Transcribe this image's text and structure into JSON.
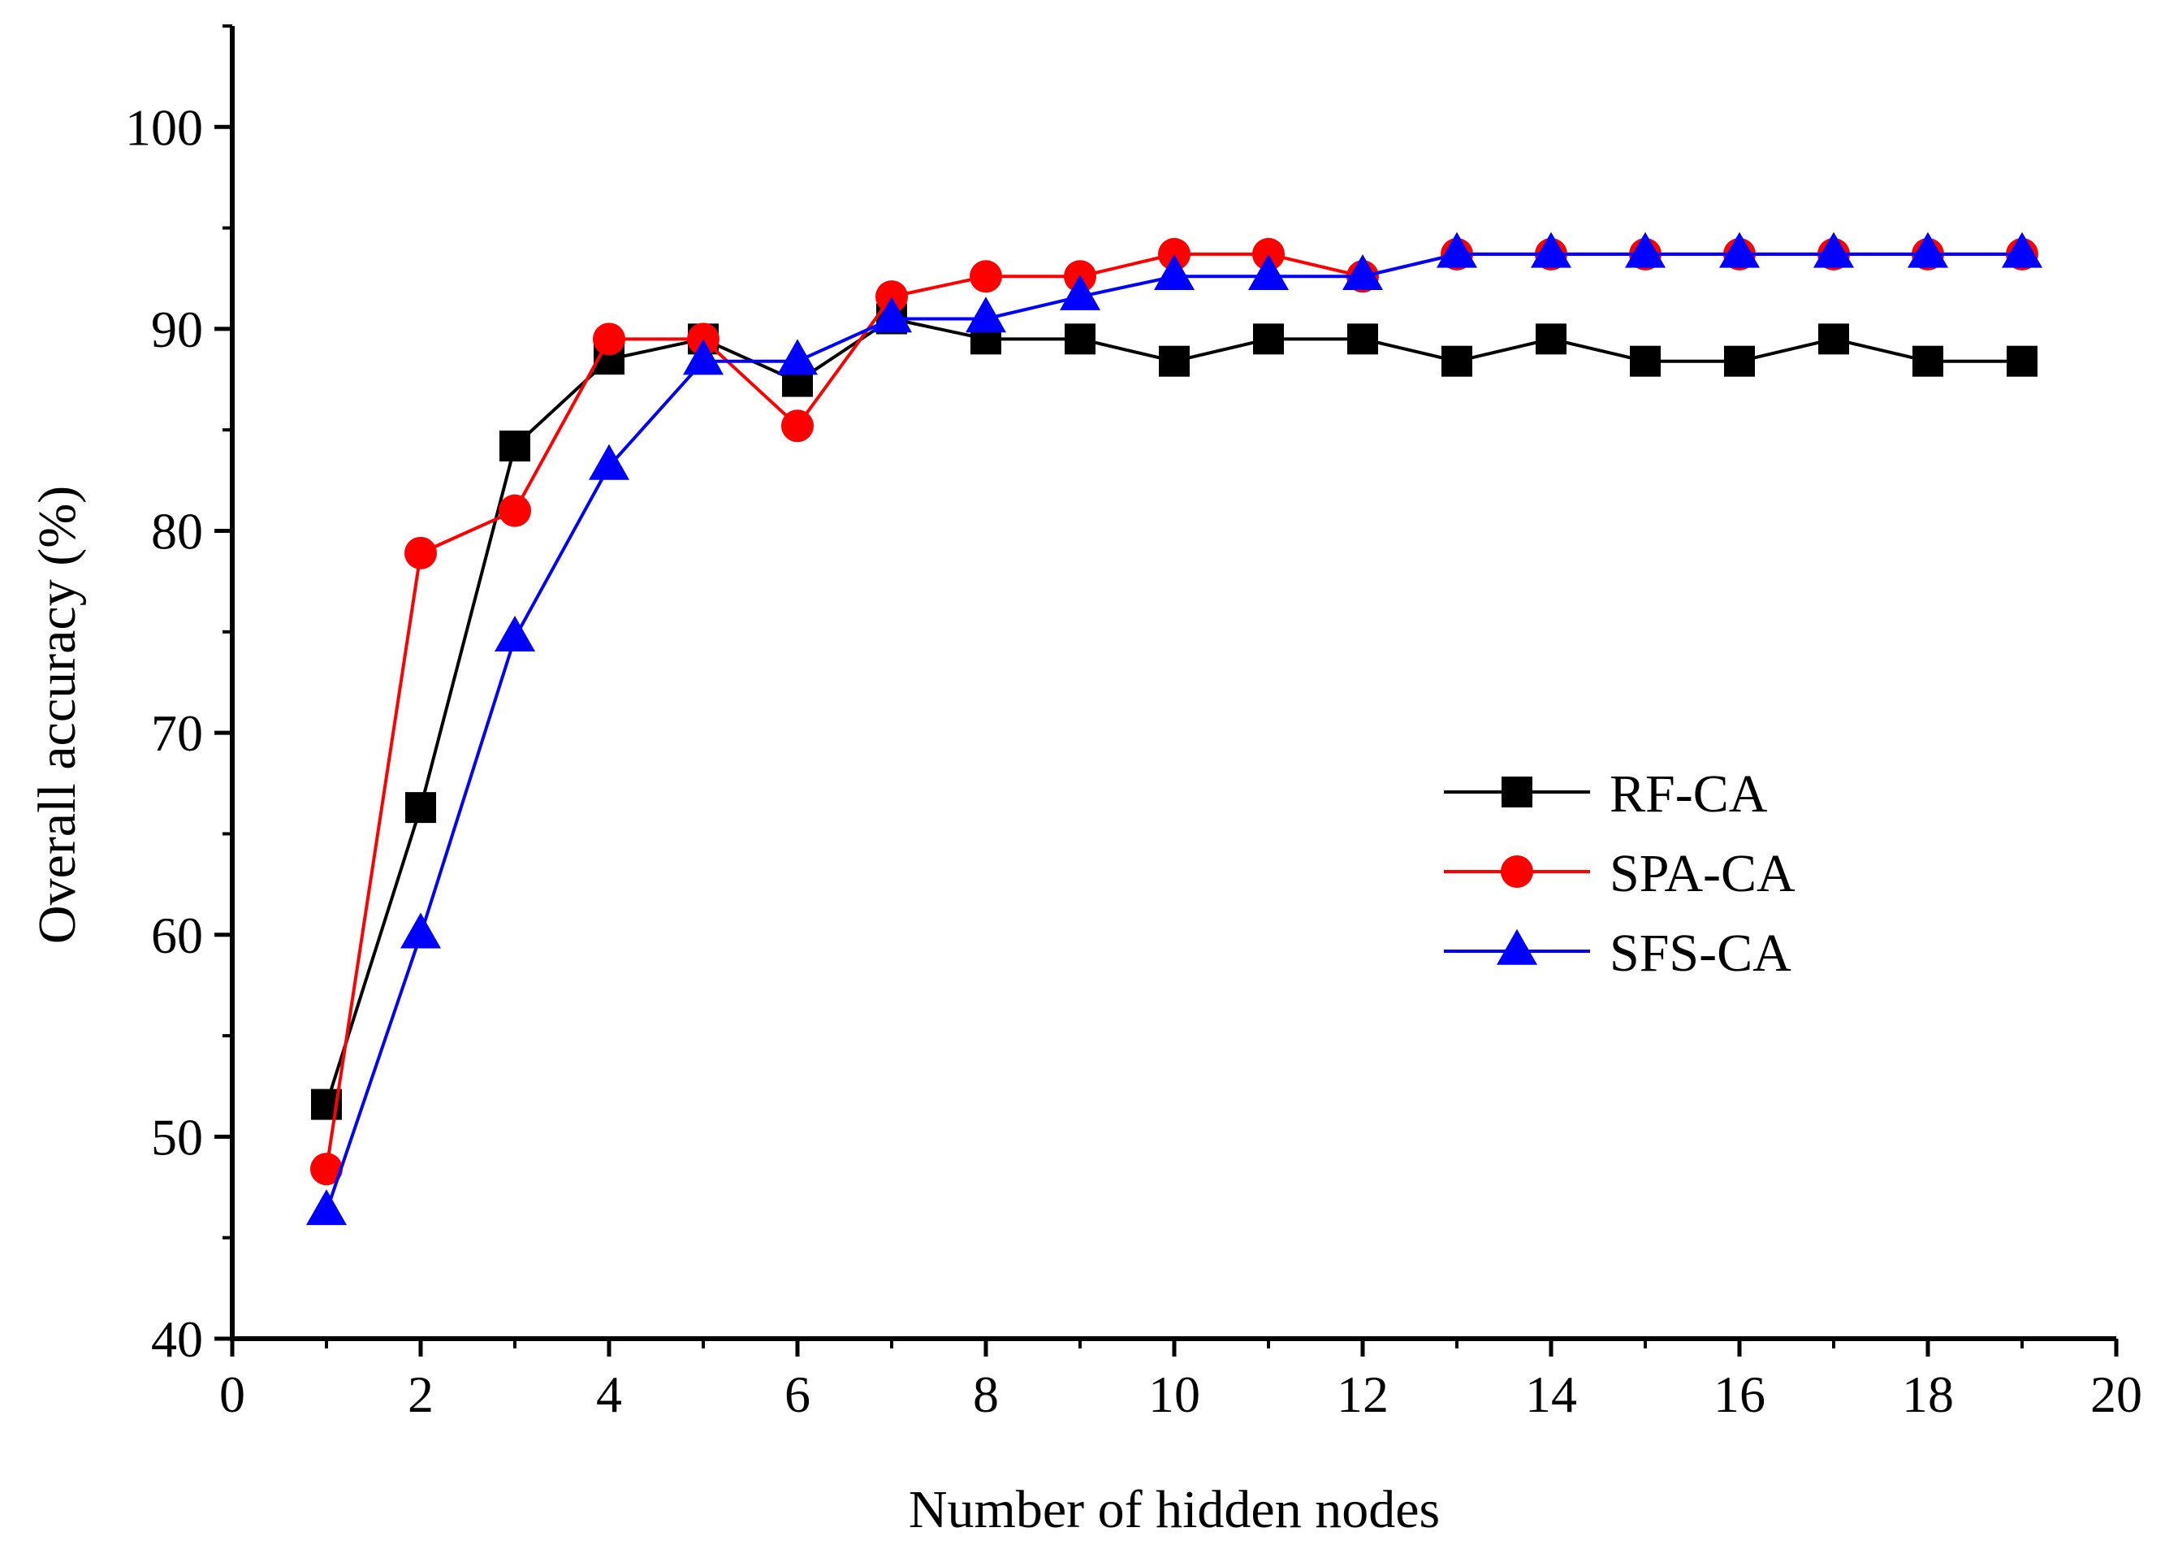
{
  "chart_data": {
    "type": "line",
    "title": "",
    "xlabel": "Number of hidden nodes",
    "ylabel": "Overall accuracy (%)",
    "xlim": [
      0,
      20
    ],
    "ylim": [
      40,
      105
    ],
    "xticks": [
      0,
      2,
      4,
      6,
      8,
      10,
      12,
      14,
      16,
      18,
      20
    ],
    "yticks": [
      40,
      50,
      60,
      70,
      80,
      90,
      100
    ],
    "grid": false,
    "legend_position": "center-right",
    "x": [
      1,
      2,
      3,
      4,
      5,
      6,
      7,
      8,
      9,
      10,
      11,
      12,
      13,
      14,
      15,
      16,
      17,
      18,
      19
    ],
    "series": [
      {
        "name": "RF-CA",
        "color": "#000000",
        "marker": "square",
        "values": [
          51.6,
          66.3,
          84.2,
          88.5,
          89.5,
          87.4,
          90.5,
          89.5,
          89.5,
          88.4,
          89.5,
          89.5,
          88.4,
          89.5,
          88.4,
          88.4,
          89.5,
          88.4,
          88.4
        ]
      },
      {
        "name": "SPA-CA",
        "color": "#ff0000",
        "marker": "circle",
        "values": [
          48.4,
          78.9,
          81.0,
          89.5,
          89.5,
          85.2,
          91.6,
          92.6,
          92.6,
          93.7,
          93.7,
          92.6,
          93.7,
          93.7,
          93.7,
          93.7,
          93.7,
          93.7,
          93.7
        ]
      },
      {
        "name": "SFS-CA",
        "color": "#0000ff",
        "marker": "triangle",
        "values": [
          46.3,
          60.0,
          74.7,
          83.2,
          88.4,
          88.4,
          90.5,
          90.5,
          91.6,
          92.6,
          92.6,
          92.6,
          93.7,
          93.7,
          93.7,
          93.7,
          93.7,
          93.7,
          93.7
        ]
      }
    ]
  }
}
